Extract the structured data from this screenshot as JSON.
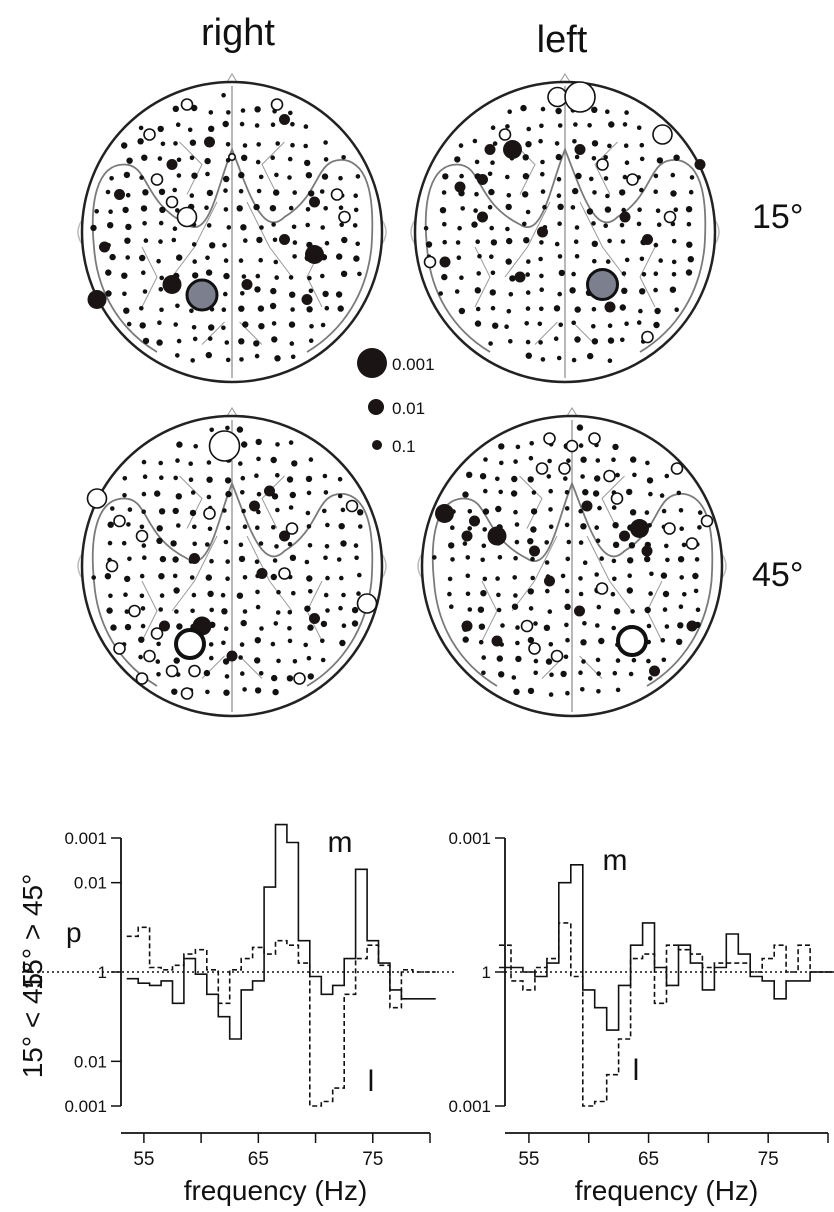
{
  "headers": {
    "right": "right",
    "left": "left"
  },
  "angles": {
    "row1": "15°",
    "row2": "45°"
  },
  "legend": [
    {
      "label": "0.001",
      "p": 0.001
    },
    {
      "label": "0.01",
      "p": 0.01
    },
    {
      "label": "0.1",
      "p": 0.1
    }
  ],
  "colors": {
    "significant": "#1a1414",
    "peak": "#7c7f8e",
    "outline": "#222222",
    "contour": "#7a7a7a"
  },
  "chart_data": [
    {
      "type": "line",
      "panel": "right",
      "title": "",
      "ylabel": "p",
      "ylabel_upper": "15° > 45°",
      "ylabel_lower": "15° < 45°",
      "xlabel": "frequency (Hz)",
      "xticks": [
        55,
        65,
        75
      ],
      "xlim": [
        53,
        80
      ],
      "yticks": [
        "0.001",
        "0.01",
        "1",
        "0.01",
        "0.001"
      ],
      "scale": "signed log10 p (positive: 15° > 45°, negative: 15° < 45°)",
      "series": [
        {
          "name": "m",
          "style": "solid",
          "x": [
            54,
            55,
            56,
            57,
            58,
            59,
            60,
            61,
            62,
            63,
            64,
            65,
            66,
            67,
            68,
            69,
            70,
            71,
            72,
            73,
            74,
            75,
            76,
            77,
            78,
            79,
            80
          ],
          "y": [
            -0.15,
            -0.25,
            -0.3,
            -0.2,
            -0.7,
            0.3,
            -0.05,
            -0.5,
            -1.0,
            -1.5,
            -0.4,
            -0.2,
            1.9,
            3.3,
            2.9,
            0.7,
            -0.1,
            -0.5,
            -0.3,
            0.3,
            2.3,
            0.7,
            0.2,
            -0.4,
            -0.6,
            -0.6,
            -0.6
          ]
        },
        {
          "name": "l",
          "style": "dashed",
          "x": [
            54,
            55,
            56,
            57,
            58,
            59,
            60,
            61,
            62,
            63,
            64,
            65,
            66,
            67,
            68,
            69,
            70,
            71,
            72,
            73,
            74,
            75,
            76,
            77,
            78,
            79,
            80
          ],
          "y": [
            0.8,
            1.0,
            0.1,
            0.05,
            0.15,
            0.4,
            0.5,
            0.05,
            -0.7,
            0.05,
            0.3,
            0.55,
            0.4,
            0.7,
            0.6,
            0.2,
            -3.0,
            -2.9,
            -2.6,
            -0.5,
            0.3,
            0.6,
            0.15,
            -0.8,
            0.05,
            0.0,
            0.0
          ]
        }
      ],
      "annotations": [
        {
          "text": "m",
          "series": "m"
        },
        {
          "text": "l",
          "series": "l"
        }
      ]
    },
    {
      "type": "line",
      "panel": "left",
      "title": "",
      "ylabel": "",
      "xlabel": "frequency (Hz)",
      "xticks": [
        55,
        65,
        75
      ],
      "xlim": [
        53,
        80
      ],
      "yticks": [
        "0.001",
        "1",
        "0.001"
      ],
      "scale": "signed log10 p (positive: 15° > 45°, negative: 15° < 45°)",
      "series": [
        {
          "name": "m",
          "style": "solid",
          "x": [
            53,
            54,
            55,
            56,
            57,
            58,
            59,
            60,
            61,
            62,
            63,
            64,
            65,
            66,
            67,
            68,
            69,
            70,
            71,
            72,
            73,
            74,
            75,
            76,
            77,
            78,
            79,
            80
          ],
          "y": [
            0.1,
            0.1,
            0.0,
            -0.1,
            0.2,
            2.0,
            2.4,
            -0.4,
            -0.8,
            -1.3,
            -0.3,
            0.6,
            1.1,
            0.1,
            -0.3,
            0.6,
            0.2,
            -0.4,
            0.1,
            0.85,
            0.4,
            -0.1,
            -0.2,
            -0.6,
            -0.2,
            -0.2,
            0.0,
            0.0
          ]
        },
        {
          "name": "l",
          "style": "dashed",
          "x": [
            53,
            54,
            55,
            56,
            57,
            58,
            59,
            60,
            61,
            62,
            63,
            64,
            65,
            66,
            67,
            68,
            69,
            70,
            71,
            72,
            73,
            74,
            75,
            76,
            77,
            78,
            79,
            80
          ],
          "y": [
            0.6,
            -0.2,
            -0.4,
            0.1,
            0.3,
            1.1,
            -0.1,
            -3.0,
            -2.9,
            -2.3,
            -1.5,
            0.3,
            0.4,
            -0.7,
            0.6,
            0.5,
            0.4,
            0.1,
            0.2,
            0.2,
            0.2,
            0.0,
            0.3,
            0.6,
            0.0,
            0.6,
            0.0,
            0.0
          ]
        }
      ],
      "annotations": [
        {
          "text": "m",
          "series": "m"
        },
        {
          "text": "l",
          "series": "l"
        }
      ]
    }
  ],
  "topomaps": [
    {
      "name": "right-15",
      "condition": "right",
      "angle": "15°",
      "sig": [
        [
          -0.3,
          -0.85,
          2
        ],
        [
          0.35,
          -0.75,
          2
        ],
        [
          -0.15,
          -0.6,
          2
        ],
        [
          -0.4,
          -0.45,
          2
        ],
        [
          -0.75,
          -0.25,
          2
        ],
        [
          0.55,
          -0.2,
          2
        ],
        [
          -0.85,
          0.1,
          2
        ],
        [
          0.35,
          0.05,
          2
        ],
        [
          0.55,
          0.15,
          3
        ],
        [
          0.1,
          0.35,
          2
        ],
        [
          -0.4,
          0.35,
          3
        ],
        [
          -0.15,
          0.45,
          2
        ],
        [
          0.5,
          0.45,
          2
        ],
        [
          -0.9,
          0.45,
          3
        ]
      ],
      "peak": [
        [
          -0.2,
          0.42,
          4
        ]
      ],
      "open": [
        [
          -0.3,
          -0.85,
          2
        ],
        [
          0.3,
          -0.85,
          2
        ],
        [
          -0.55,
          -0.65,
          2
        ],
        [
          -0.5,
          -0.35,
          2
        ],
        [
          -0.3,
          -0.1,
          3
        ],
        [
          0.7,
          -0.25,
          2
        ],
        [
          0.75,
          -0.1,
          2
        ],
        [
          0.0,
          -0.5,
          1
        ],
        [
          -0.4,
          -0.2,
          2
        ]
      ]
    },
    {
      "name": "left-15",
      "condition": "left",
      "angle": "15°",
      "sig": [
        [
          -0.5,
          -0.55,
          2
        ],
        [
          -0.35,
          -0.55,
          3
        ],
        [
          -0.55,
          -0.35,
          2
        ],
        [
          -0.7,
          -0.3,
          2
        ],
        [
          -0.55,
          -0.1,
          2
        ],
        [
          0.1,
          -0.55,
          2
        ],
        [
          0.55,
          0.05,
          2
        ],
        [
          -0.15,
          0.0,
          2
        ],
        [
          0.4,
          -0.1,
          2
        ],
        [
          -0.3,
          0.3,
          2
        ],
        [
          0.3,
          0.5,
          2
        ],
        [
          0.9,
          -0.45,
          2
        ],
        [
          -0.8,
          0.2,
          2
        ]
      ],
      "peak": [
        [
          0.25,
          0.35,
          4
        ]
      ],
      "open": [
        [
          -0.05,
          -0.9,
          3
        ],
        [
          0.1,
          -0.9,
          4
        ],
        [
          0.65,
          -0.65,
          3
        ],
        [
          0.45,
          -0.35,
          2
        ],
        [
          0.7,
          -0.1,
          2
        ],
        [
          0.55,
          0.7,
          2
        ],
        [
          -0.9,
          0.2,
          2
        ],
        [
          -0.4,
          -0.65,
          2
        ],
        [
          0.25,
          -0.45,
          2
        ]
      ]
    },
    {
      "name": "right-45",
      "condition": "right",
      "angle": "45°",
      "sig": [
        [
          -0.05,
          -0.75,
          2
        ],
        [
          0.15,
          -0.4,
          2
        ],
        [
          0.25,
          -0.5,
          2
        ],
        [
          -0.25,
          -0.05,
          2
        ],
        [
          0.2,
          0.05,
          2
        ],
        [
          -0.2,
          0.4,
          3
        ],
        [
          0.55,
          0.35,
          2
        ],
        [
          -0.45,
          0.4,
          2
        ],
        [
          0.0,
          0.6,
          2
        ],
        [
          0.35,
          -0.2,
          2
        ]
      ],
      "peak_open": [
        [
          -0.28,
          0.52,
          4
        ]
      ],
      "open": [
        [
          -0.05,
          -0.8,
          4
        ],
        [
          -0.9,
          -0.45,
          3
        ],
        [
          -0.75,
          -0.3,
          2
        ],
        [
          -0.6,
          -0.2,
          2
        ],
        [
          0.8,
          -0.4,
          2
        ],
        [
          0.9,
          0.25,
          3
        ],
        [
          0.4,
          -0.25,
          2
        ],
        [
          0.35,
          0.05,
          2
        ],
        [
          -0.8,
          0.0,
          2
        ],
        [
          -0.65,
          0.3,
          2
        ],
        [
          -0.5,
          0.45,
          2
        ],
        [
          -0.55,
          0.6,
          2
        ],
        [
          -0.4,
          0.7,
          2
        ],
        [
          -0.3,
          0.85,
          2
        ],
        [
          -0.6,
          0.75,
          2
        ],
        [
          -0.75,
          0.55,
          2
        ],
        [
          0.45,
          0.75,
          2
        ],
        [
          -0.25,
          0.7,
          2
        ],
        [
          -0.15,
          -0.35,
          2
        ]
      ]
    },
    {
      "name": "left-45",
      "condition": "left",
      "angle": "45°",
      "sig": [
        [
          -0.85,
          -0.35,
          3
        ],
        [
          -0.65,
          -0.3,
          2
        ],
        [
          -0.5,
          -0.2,
          3
        ],
        [
          -0.7,
          -0.2,
          2
        ],
        [
          -0.15,
          0.1,
          2
        ],
        [
          0.45,
          -0.25,
          3
        ],
        [
          0.35,
          -0.2,
          2
        ],
        [
          0.5,
          -0.1,
          2
        ],
        [
          0.1,
          -0.4,
          2
        ],
        [
          0.05,
          0.3,
          2
        ],
        [
          0.35,
          0.5,
          2
        ],
        [
          0.8,
          0.4,
          2
        ],
        [
          -0.25,
          -0.1,
          2
        ],
        [
          0.55,
          0.7,
          2
        ],
        [
          -0.5,
          0.5,
          2
        ],
        [
          -0.7,
          0.4,
          2
        ]
      ],
      "peak_open": [
        [
          0.4,
          0.5,
          4
        ]
      ],
      "open": [
        [
          -0.15,
          -0.85,
          2
        ],
        [
          0.0,
          -0.8,
          2
        ],
        [
          0.15,
          -0.85,
          2
        ],
        [
          -0.05,
          -0.65,
          2
        ],
        [
          0.7,
          -0.65,
          2
        ],
        [
          0.3,
          -0.45,
          2
        ],
        [
          0.25,
          -0.6,
          2
        ],
        [
          -0.3,
          0.4,
          2
        ],
        [
          -0.25,
          0.55,
          2
        ],
        [
          -0.1,
          0.6,
          2
        ],
        [
          0.2,
          0.15,
          2
        ],
        [
          0.8,
          -0.15,
          2
        ],
        [
          0.65,
          -0.25,
          2
        ],
        [
          -0.2,
          -0.65,
          2
        ],
        [
          0.9,
          -0.3,
          2
        ]
      ]
    }
  ]
}
